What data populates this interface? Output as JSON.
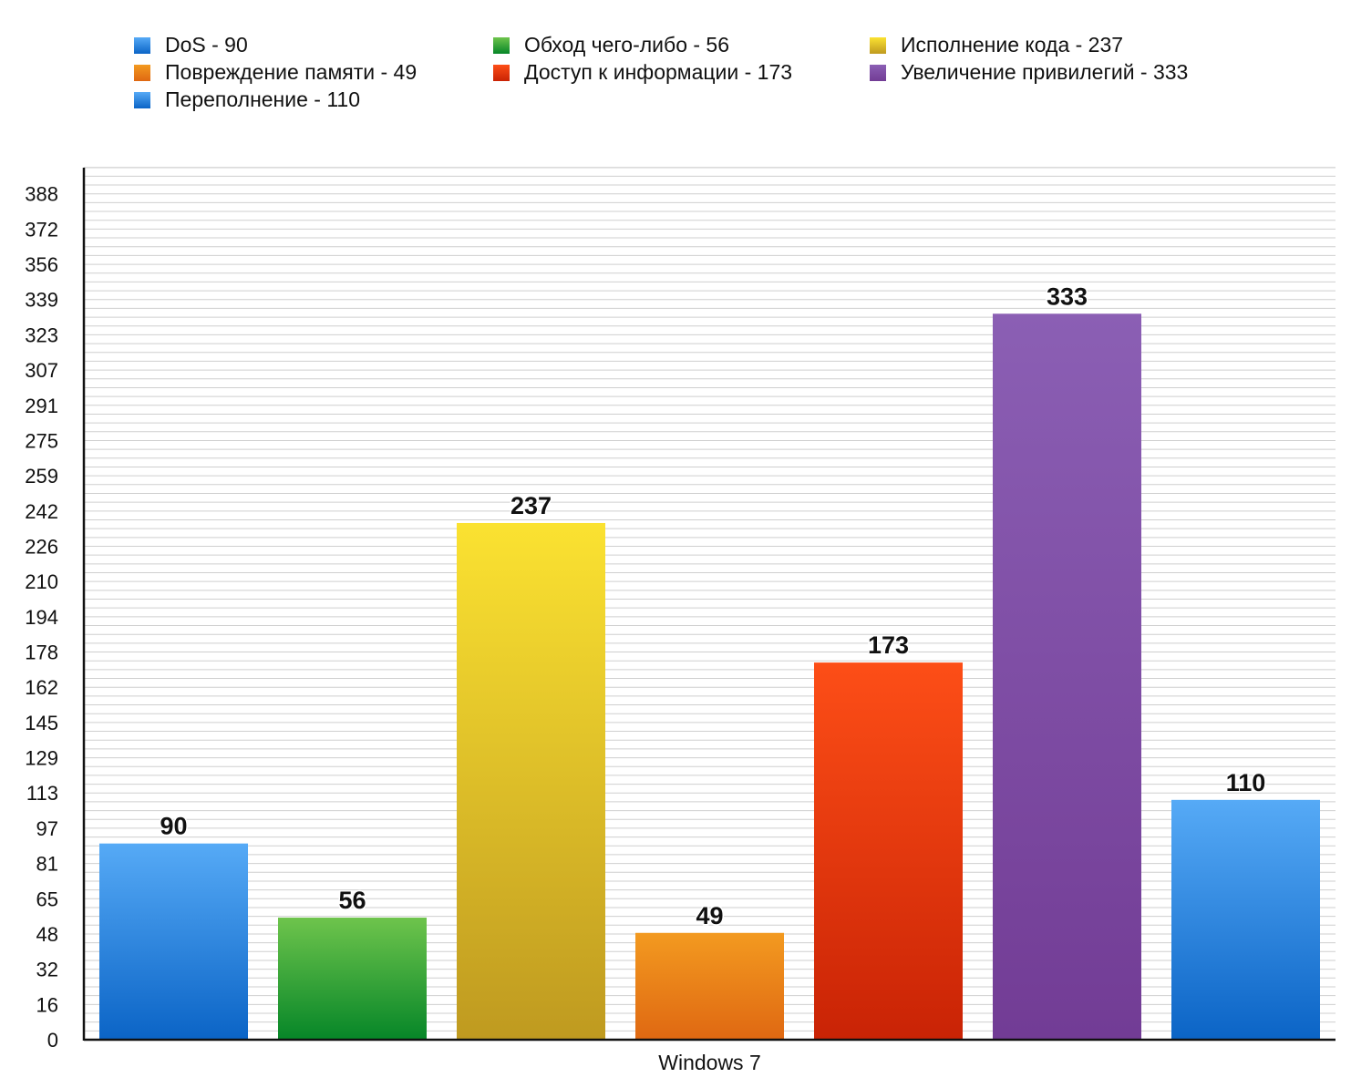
{
  "chart_data": {
    "type": "bar",
    "categories": [
      "Windows 7"
    ],
    "series": [
      {
        "name": "DoS",
        "legend": "DoS - 90",
        "value": 90,
        "label": "90",
        "color_top": "#56aaf6",
        "color_bottom": "#0b64c6"
      },
      {
        "name": "Обход чего-либо",
        "legend": "Обход чего-либо - 56",
        "value": 56,
        "label": "56",
        "color_top": "#6ec44c",
        "color_bottom": "#068628"
      },
      {
        "name": "Исполнение кода",
        "legend": "Исполнение кода - 237",
        "value": 237,
        "label": "237",
        "color_top": "#fbe231",
        "color_bottom": "#bf9a20"
      },
      {
        "name": "Повреждение памяти",
        "legend": "Повреждение памяти - 49",
        "value": 49,
        "label": "49",
        "color_top": "#f39a20",
        "color_bottom": "#df6812"
      },
      {
        "name": "Доступ к информации",
        "legend": "Доступ к информации - 173",
        "value": 173,
        "label": "173",
        "color_top": "#fd4e17",
        "color_bottom": "#c92305"
      },
      {
        "name": "Увеличение привилегий",
        "legend": "Увеличение привилегий - 333",
        "value": 333,
        "label": "333",
        "color_top": "#8b5fb4",
        "color_bottom": "#723c95"
      },
      {
        "name": "Переполнение",
        "legend": "Переполнение - 110",
        "value": 110,
        "label": "110",
        "color_top": "#56aaf6",
        "color_bottom": "#0b64c6"
      }
    ],
    "y_ticks": [
      "0",
      "16",
      "32",
      "48",
      "65",
      "81",
      "97",
      "113",
      "129",
      "145",
      "162",
      "178",
      "194",
      "210",
      "226",
      "242",
      "259",
      "275",
      "291",
      "307",
      "323",
      "339",
      "356",
      "372",
      "388"
    ],
    "ylim": [
      0,
      400
    ],
    "xlabel": "Windows 7",
    "ylabel": "",
    "title": "",
    "grid": true,
    "legend_position": "top"
  }
}
